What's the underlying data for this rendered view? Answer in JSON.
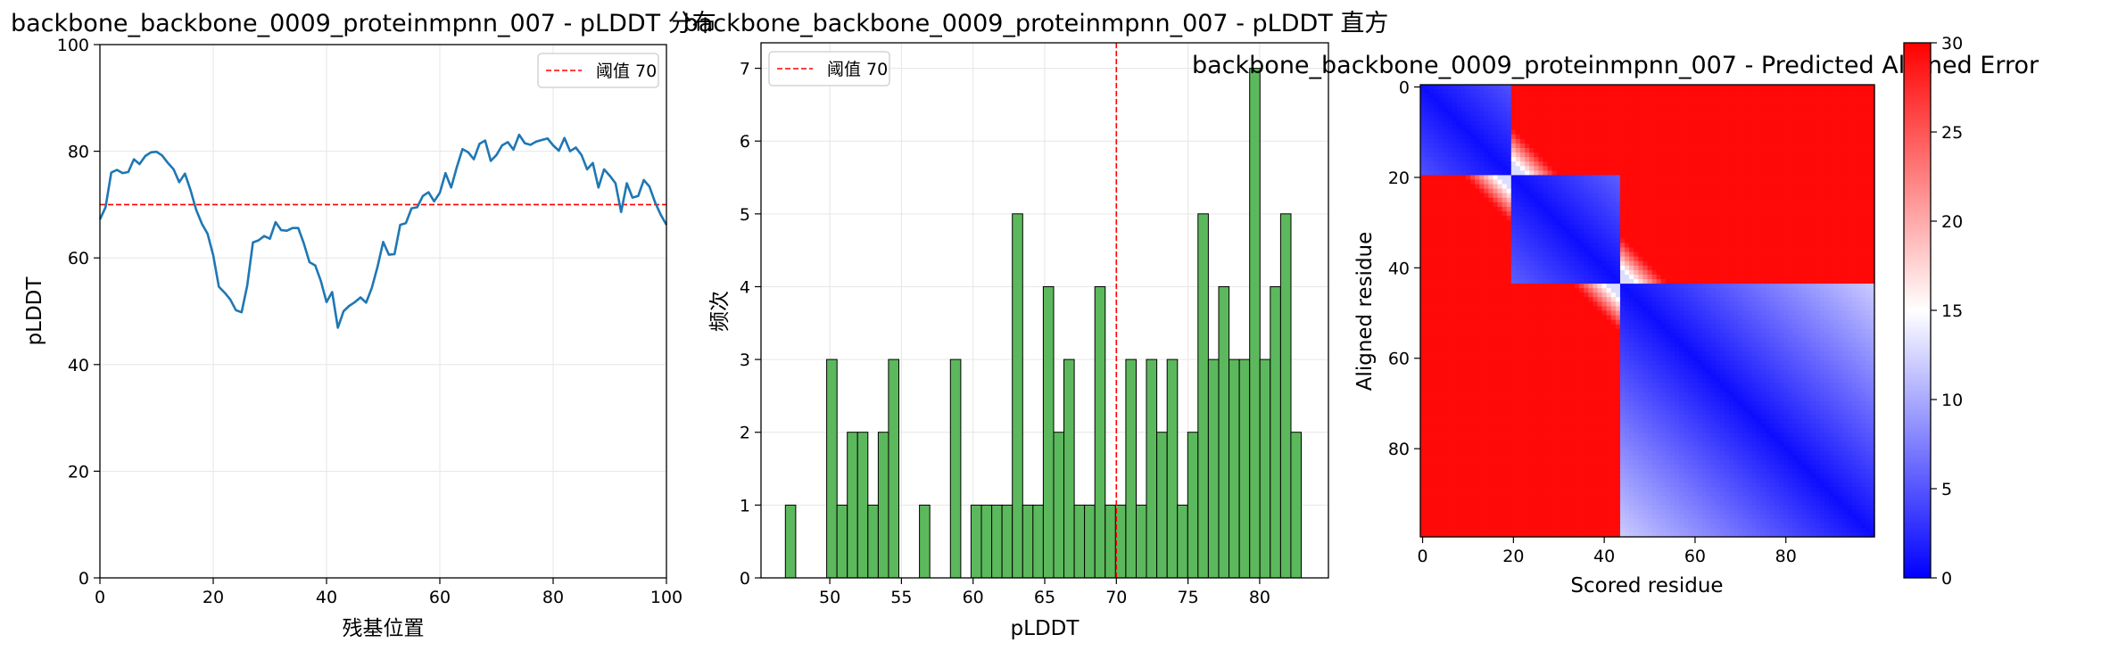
{
  "chart_data": [
    {
      "type": "line",
      "title": "backbone_backbone_0009_proteinmpnn_007 - pLDDT 分布",
      "xlabel": "残基位置",
      "ylabel": "pLDDT",
      "xlim": [
        0,
        100
      ],
      "ylim": [
        0,
        100
      ],
      "xticks": [
        "0",
        "20",
        "40",
        "60",
        "80",
        "100"
      ],
      "yticks": [
        "0",
        "20",
        "40",
        "60",
        "80",
        "100"
      ],
      "grid": true,
      "legend_position": "top-right",
      "series_color": "#1f77b4",
      "threshold": {
        "value": 70,
        "label": "阈值 70",
        "color": "#ff0000"
      },
      "x": [
        0,
        1,
        2,
        3,
        4,
        5,
        6,
        7,
        8,
        9,
        10,
        11,
        12,
        13,
        14,
        15,
        16,
        17,
        18,
        19,
        20,
        21,
        22,
        23,
        24,
        25,
        26,
        27,
        28,
        29,
        30,
        31,
        32,
        33,
        34,
        35,
        36,
        37,
        38,
        39,
        40,
        41,
        42,
        43,
        44,
        45,
        46,
        47,
        48,
        49,
        50,
        51,
        52,
        53,
        54,
        55,
        56,
        57,
        58,
        59,
        60,
        61,
        62,
        63,
        64,
        65,
        66,
        67,
        68,
        69,
        70,
        71,
        72,
        73,
        74,
        75,
        76,
        77,
        78,
        79,
        80,
        81,
        82,
        83,
        84,
        85,
        86,
        87,
        88,
        89,
        90,
        91,
        92,
        93,
        94,
        95,
        96,
        97,
        98,
        99,
        100
      ],
      "y": [
        67.2,
        69.5,
        76.0,
        76.5,
        75.9,
        76.1,
        78.5,
        77.6,
        79.1,
        79.8,
        79.9,
        79.2,
        77.8,
        76.6,
        74.2,
        75.8,
        72.7,
        69.0,
        66.4,
        64.5,
        60.5,
        54.6,
        53.5,
        52.2,
        50.2,
        49.8,
        54.8,
        62.9,
        63.3,
        64.1,
        63.6,
        66.7,
        65.2,
        65.1,
        65.6,
        65.6,
        62.7,
        59.2,
        58.6,
        55.7,
        51.7,
        53.6,
        46.9,
        50.0,
        51.0,
        51.7,
        52.6,
        51.6,
        54.4,
        58.3,
        63.0,
        60.6,
        60.7,
        66.2,
        66.5,
        69.3,
        69.5,
        71.6,
        72.3,
        70.6,
        72.2,
        75.9,
        73.2,
        77.0,
        80.4,
        79.8,
        78.5,
        81.4,
        82.0,
        78.2,
        79.3,
        81.1,
        81.7,
        80.3,
        83.1,
        81.5,
        81.2,
        81.8,
        82.1,
        82.4,
        81.1,
        80.1,
        82.5,
        80.0,
        80.7,
        79.3,
        76.6,
        77.8,
        73.2,
        76.6,
        75.4,
        74.0,
        68.6,
        74.0,
        71.3,
        71.6,
        74.6,
        73.4,
        70.4,
        68.1,
        66.2
      ]
    },
    {
      "type": "bar",
      "title": "backbone_backbone_0009_proteinmpnn_007 - pLDDT 直方",
      "xlabel": "pLDDT",
      "ylabel": "频次",
      "xlim": [
        45.2,
        84.8
      ],
      "ylim": [
        0,
        7.35
      ],
      "xticks": [
        "50",
        "55",
        "60",
        "65",
        "70",
        "75",
        "80"
      ],
      "yticks": [
        "0",
        "1",
        "2",
        "3",
        "4",
        "5",
        "6",
        "7"
      ],
      "grid": true,
      "legend_position": "top-left",
      "bar_color": "#5cb85c",
      "bin_width": 0.72,
      "threshold": {
        "value": 70,
        "label": "阈值 70",
        "color": "#ff0000"
      },
      "bin_left_edges": [
        46.9,
        47.62,
        48.34,
        49.06,
        49.78,
        50.5,
        51.22,
        51.94,
        52.66,
        53.38,
        54.1,
        54.82,
        55.54,
        56.26,
        56.98,
        57.7,
        58.42,
        59.14,
        59.86,
        60.58,
        61.3,
        62.02,
        62.74,
        63.46,
        64.18,
        64.9,
        65.62,
        66.34,
        67.06,
        67.78,
        68.5,
        69.22,
        69.94,
        70.66,
        71.38,
        72.1,
        72.82,
        73.54,
        74.26,
        74.98,
        75.7,
        76.42,
        77.14,
        77.86,
        78.58,
        79.3,
        80.02,
        80.74,
        81.46,
        82.18
      ],
      "counts": [
        1,
        0,
        0,
        0,
        3,
        1,
        2,
        2,
        1,
        2,
        3,
        0,
        0,
        1,
        0,
        0,
        3,
        0,
        1,
        1,
        1,
        1,
        5,
        1,
        1,
        4,
        2,
        3,
        1,
        1,
        4,
        1,
        1,
        3,
        1,
        3,
        2,
        3,
        1,
        2,
        5,
        3,
        4,
        3,
        3,
        7,
        3,
        4,
        5,
        2
      ]
    },
    {
      "type": "heatmap",
      "title": "backbone_backbone_0009_proteinmpnn_007 - Predicted Aligned Error",
      "xlabel": "Scored residue",
      "ylabel": "Aligned residue",
      "n_residues": 100,
      "xticks": [
        "0",
        "20",
        "40",
        "60",
        "80"
      ],
      "yticks": [
        "0",
        "20",
        "40",
        "60",
        "80"
      ],
      "colormap": "bwr",
      "color_range": [
        0,
        30
      ],
      "colorbar_ticks": [
        "0",
        "5",
        "10",
        "15",
        "20",
        "25",
        "30"
      ],
      "domain_boundaries": [
        20,
        44
      ]
    }
  ]
}
